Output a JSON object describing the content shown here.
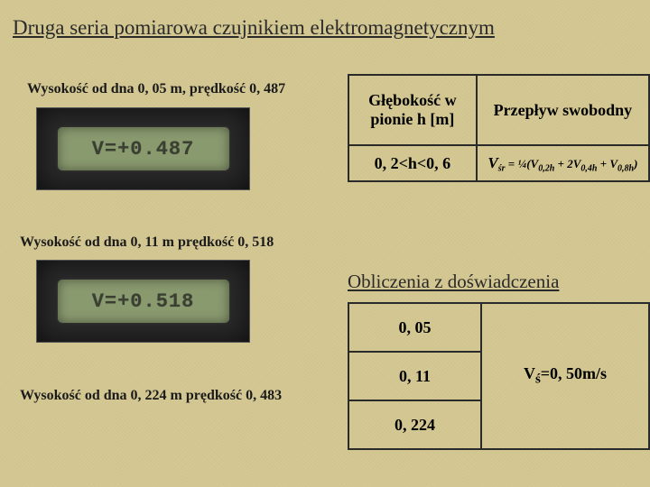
{
  "title": "Druga seria pomiarowa czujnikiem elektromagnetycznym",
  "captions": {
    "c1": "Wysokość od dna  0, 05 m, prędkość 0, 487",
    "c2": "Wysokość od dna  0, 11 m prędkość 0, 518",
    "c3": "Wysokość od dna  0, 224 m prędkość 0, 483"
  },
  "lcd": {
    "l1": "V=+0.487",
    "l2": "V=+0.518"
  },
  "table1": {
    "headers": {
      "a": "Głębokość w pionie h [m]",
      "b": "Przepływ swobodny"
    },
    "row": {
      "a": "0, 2<h<0, 6"
    },
    "formula": {
      "lhs": "V",
      "lhs_sub": "śr",
      "frac": "¼",
      "t1": "V",
      "s1": "0,2h",
      "t2": "2V",
      "s2": "0,4h",
      "t3": "V",
      "s3": "0,8h"
    }
  },
  "subtitle": "Obliczenia z doświadczenia",
  "table2": {
    "r1a": "0, 05",
    "r1b": "",
    "r2a": "0, 11",
    "r2b_pre": "V",
    "r2b_sub": "ś",
    "r2b_post": "=0, 50m/s",
    "r3a": "0, 224",
    "r3b": ""
  },
  "colors": {
    "bg": "#d4c894",
    "text": "#2a2a2a",
    "lcd_body": "#2a2a2a",
    "lcd_screen": "#8a9a6f",
    "lcd_text": "#3a3f32"
  }
}
